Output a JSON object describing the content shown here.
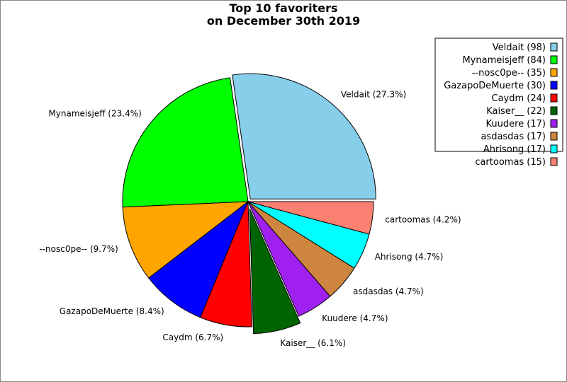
{
  "chart_data": {
    "type": "pie",
    "title": "Top 10 favoriters",
    "subtitle": "on December 30th 2019",
    "legend_position": "top-right",
    "slices": [
      {
        "name": "Veldait",
        "value": 98,
        "label": "Veldait (27.3%)",
        "legend": "Veldait (98)",
        "color": "#87CEEB"
      },
      {
        "name": "Mynameisjeff",
        "value": 84,
        "label": "Mynameisjeff (23.4%)",
        "legend": "Mynameisjeff (84)",
        "color": "#00FF00"
      },
      {
        "name": "--nosc0pe--",
        "value": 35,
        "label": "--nosc0pe-- (9.7%)",
        "legend": "--nosc0pe-- (35)",
        "color": "#FFA500"
      },
      {
        "name": "GazapoDeMuerte",
        "value": 30,
        "label": "GazapoDeMuerte (8.4%)",
        "legend": "GazapoDeMuerte (30)",
        "color": "#0000FF"
      },
      {
        "name": "Caydm",
        "value": 24,
        "label": "Caydm (6.7%)",
        "legend": "Caydm (24)",
        "color": "#FF0000"
      },
      {
        "name": "Kaiser__",
        "value": 22,
        "label": "Kaiser__ (6.1%)",
        "legend": "Kaiser__ (22)",
        "color": "#006400"
      },
      {
        "name": "Kuudere",
        "value": 17,
        "label": "Kuudere (4.7%)",
        "legend": "Kuudere (17)",
        "color": "#A020F0"
      },
      {
        "name": "asdasdas",
        "value": 17,
        "label": "asdasdas (4.7%)",
        "legend": "asdasdas (17)",
        "color": "#CD853F"
      },
      {
        "name": "Ahrisong",
        "value": 17,
        "label": "Ahrisong (4.7%)",
        "legend": "Ahrisong (17)",
        "color": "#00FFFF"
      },
      {
        "name": "cartoomas",
        "value": 15,
        "label": "cartoomas (4.2%)",
        "legend": "cartoomas (15)",
        "color": "#FA8072"
      }
    ]
  }
}
